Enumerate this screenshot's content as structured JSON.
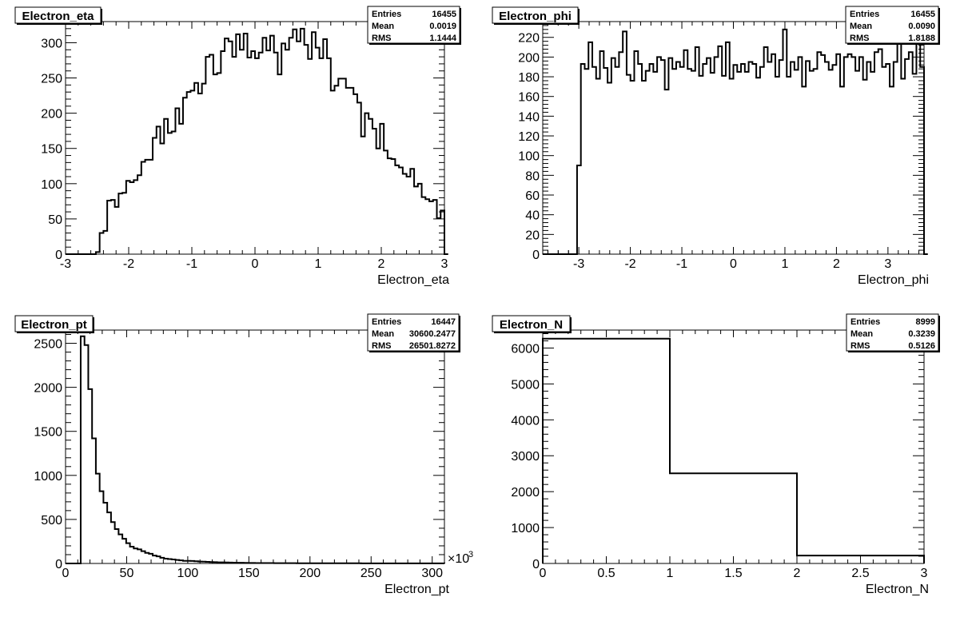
{
  "chart_data": [
    {
      "type": "histogram",
      "title": "Electron_eta",
      "xlabel": "Electron_eta",
      "ylabel": "",
      "xlim": [
        -3,
        3
      ],
      "ylim": [
        0,
        330
      ],
      "x_ticks": [
        -3,
        -2,
        -1,
        0,
        1,
        2,
        3
      ],
      "y_ticks": [
        0,
        50,
        100,
        150,
        200,
        250,
        300
      ],
      "x_tick_labels": [
        "-3",
        "-2",
        "-1",
        "0",
        "1",
        "2",
        "3"
      ],
      "y_tick_labels": [
        "0",
        "50",
        "100",
        "150",
        "200",
        "250",
        "300"
      ],
      "axis_multiplier": "",
      "stats": [
        {
          "label": "Entries",
          "value": "16455"
        },
        {
          "label": "Mean",
          "value": "0.0019"
        },
        {
          "label": "RMS",
          "value": "1.1444"
        }
      ],
      "bin_low": -3,
      "bin_width": 0.06,
      "values": [
        0,
        0,
        0,
        0,
        0,
        0,
        0,
        0,
        3,
        30,
        33,
        76,
        77,
        67,
        86,
        87,
        104,
        102,
        105,
        112,
        131,
        134,
        134,
        165,
        181,
        157,
        192,
        172,
        174,
        207,
        185,
        222,
        230,
        232,
        243,
        228,
        242,
        280,
        283,
        255,
        257,
        288,
        306,
        302,
        280,
        312,
        290,
        313,
        279,
        288,
        278,
        286,
        307,
        289,
        310,
        286,
        255,
        299,
        290,
        307,
        319,
        302,
        320,
        297,
        277,
        315,
        293,
        278,
        305,
        278,
        232,
        239,
        249,
        249,
        236,
        236,
        227,
        215,
        167,
        200,
        192,
        178,
        150,
        185,
        147,
        136,
        135,
        126,
        123,
        114,
        110,
        121,
        96,
        100,
        81,
        78,
        75,
        77,
        51,
        62,
        0
      ]
    },
    {
      "type": "histogram",
      "title": "Electron_phi",
      "xlabel": "Electron_phi",
      "ylabel": "",
      "xlim": [
        -3.7,
        3.7
      ],
      "ylim": [
        0,
        236
      ],
      "x_ticks": [
        -3,
        -2,
        -1,
        0,
        1,
        2,
        3
      ],
      "y_ticks": [
        0,
        20,
        40,
        60,
        80,
        100,
        120,
        140,
        160,
        180,
        200,
        220
      ],
      "x_tick_labels": [
        "-3",
        "-2",
        "-1",
        "0",
        "1",
        "2",
        "3"
      ],
      "y_tick_labels": [
        "0",
        "20",
        "40",
        "60",
        "80",
        "100",
        "120",
        "140",
        "160",
        "180",
        "200",
        "220"
      ],
      "axis_multiplier": "",
      "stats": [
        {
          "label": "Entries",
          "value": "16455"
        },
        {
          "label": "Mean",
          "value": "0.0090"
        },
        {
          "label": "RMS",
          "value": "1.8188"
        }
      ],
      "bin_low": -3.7,
      "bin_width": 0.074,
      "values": [
        0,
        0,
        0,
        0,
        0,
        0,
        0,
        0,
        0,
        90,
        193,
        188,
        215,
        190,
        178,
        206,
        189,
        174,
        199,
        190,
        205,
        226,
        182,
        176,
        206,
        193,
        176,
        186,
        193,
        185,
        200,
        197,
        167,
        199,
        188,
        195,
        190,
        207,
        188,
        186,
        210,
        181,
        193,
        199,
        184,
        200,
        211,
        181,
        215,
        178,
        192,
        185,
        193,
        185,
        195,
        193,
        179,
        190,
        210,
        195,
        203,
        180,
        197,
        228,
        180,
        195,
        187,
        200,
        170,
        196,
        186,
        188,
        205,
        202,
        195,
        187,
        192,
        203,
        170,
        200,
        203,
        200,
        186,
        200,
        177,
        195,
        185,
        205,
        208,
        190,
        193,
        170,
        195,
        221,
        178,
        198,
        205,
        183,
        215,
        190,
        0
      ]
    },
    {
      "type": "histogram",
      "title": "Electron_pt",
      "xlabel": "Electron_pt",
      "ylabel": "",
      "xlim": [
        0,
        310
      ],
      "ylim": [
        0,
        2650
      ],
      "x_ticks": [
        0,
        50,
        100,
        150,
        200,
        250,
        300
      ],
      "y_ticks": [
        0,
        500,
        1000,
        1500,
        2000,
        2500
      ],
      "x_tick_labels": [
        "0",
        "50",
        "100",
        "150",
        "200",
        "250",
        "300"
      ],
      "y_tick_labels": [
        "0",
        "500",
        "1000",
        "1500",
        "2000",
        "2500"
      ],
      "axis_multiplier": "×10",
      "axis_multiplier_exp": "3",
      "stats": [
        {
          "label": "Entries",
          "value": "16447"
        },
        {
          "label": "Mean",
          "value": "30600.2477"
        },
        {
          "label": "RMS",
          "value": "26501.8272"
        }
      ],
      "bin_low": 0,
      "bin_width": 3.1,
      "values": [
        0,
        0,
        0,
        0,
        2580,
        2480,
        1980,
        1420,
        1020,
        820,
        690,
        580,
        470,
        390,
        330,
        280,
        230,
        190,
        170,
        160,
        140,
        120,
        110,
        90,
        80,
        65,
        55,
        50,
        45,
        40,
        35,
        30,
        30,
        28,
        25,
        22,
        20,
        18,
        16,
        15,
        13,
        12,
        11,
        10,
        9,
        8,
        8,
        7,
        6,
        6,
        5,
        5,
        5,
        4,
        4,
        3,
        3,
        3,
        3,
        3,
        3,
        2,
        2,
        2,
        2,
        2,
        2,
        2,
        2,
        2,
        2,
        2,
        2,
        2,
        2,
        2,
        2,
        2,
        1,
        1,
        1,
        1,
        1,
        1,
        1,
        1,
        1,
        1,
        1,
        1,
        1,
        1,
        1,
        1,
        1,
        1,
        1,
        1,
        1,
        1
      ]
    },
    {
      "type": "histogram",
      "title": "Electron_N",
      "xlabel": "Electron_N",
      "ylabel": "",
      "xlim": [
        0,
        3
      ],
      "ylim": [
        0,
        6500
      ],
      "x_ticks": [
        0,
        0.5,
        1,
        1.5,
        2,
        2.5,
        3
      ],
      "y_ticks": [
        0,
        1000,
        2000,
        3000,
        4000,
        5000,
        6000
      ],
      "x_tick_labels": [
        "0",
        "0.5",
        "1",
        "1.5",
        "2",
        "2.5",
        "3"
      ],
      "y_tick_labels": [
        "0",
        "1000",
        "2000",
        "3000",
        "4000",
        "5000",
        "6000"
      ],
      "axis_multiplier": "",
      "stats": [
        {
          "label": "Entries",
          "value": "8999"
        },
        {
          "label": "Mean",
          "value": "0.3239"
        },
        {
          "label": "RMS",
          "value": "0.5126"
        }
      ],
      "bin_low": 0,
      "bin_width": 1,
      "values": [
        6260,
        2510,
        220
      ]
    }
  ]
}
